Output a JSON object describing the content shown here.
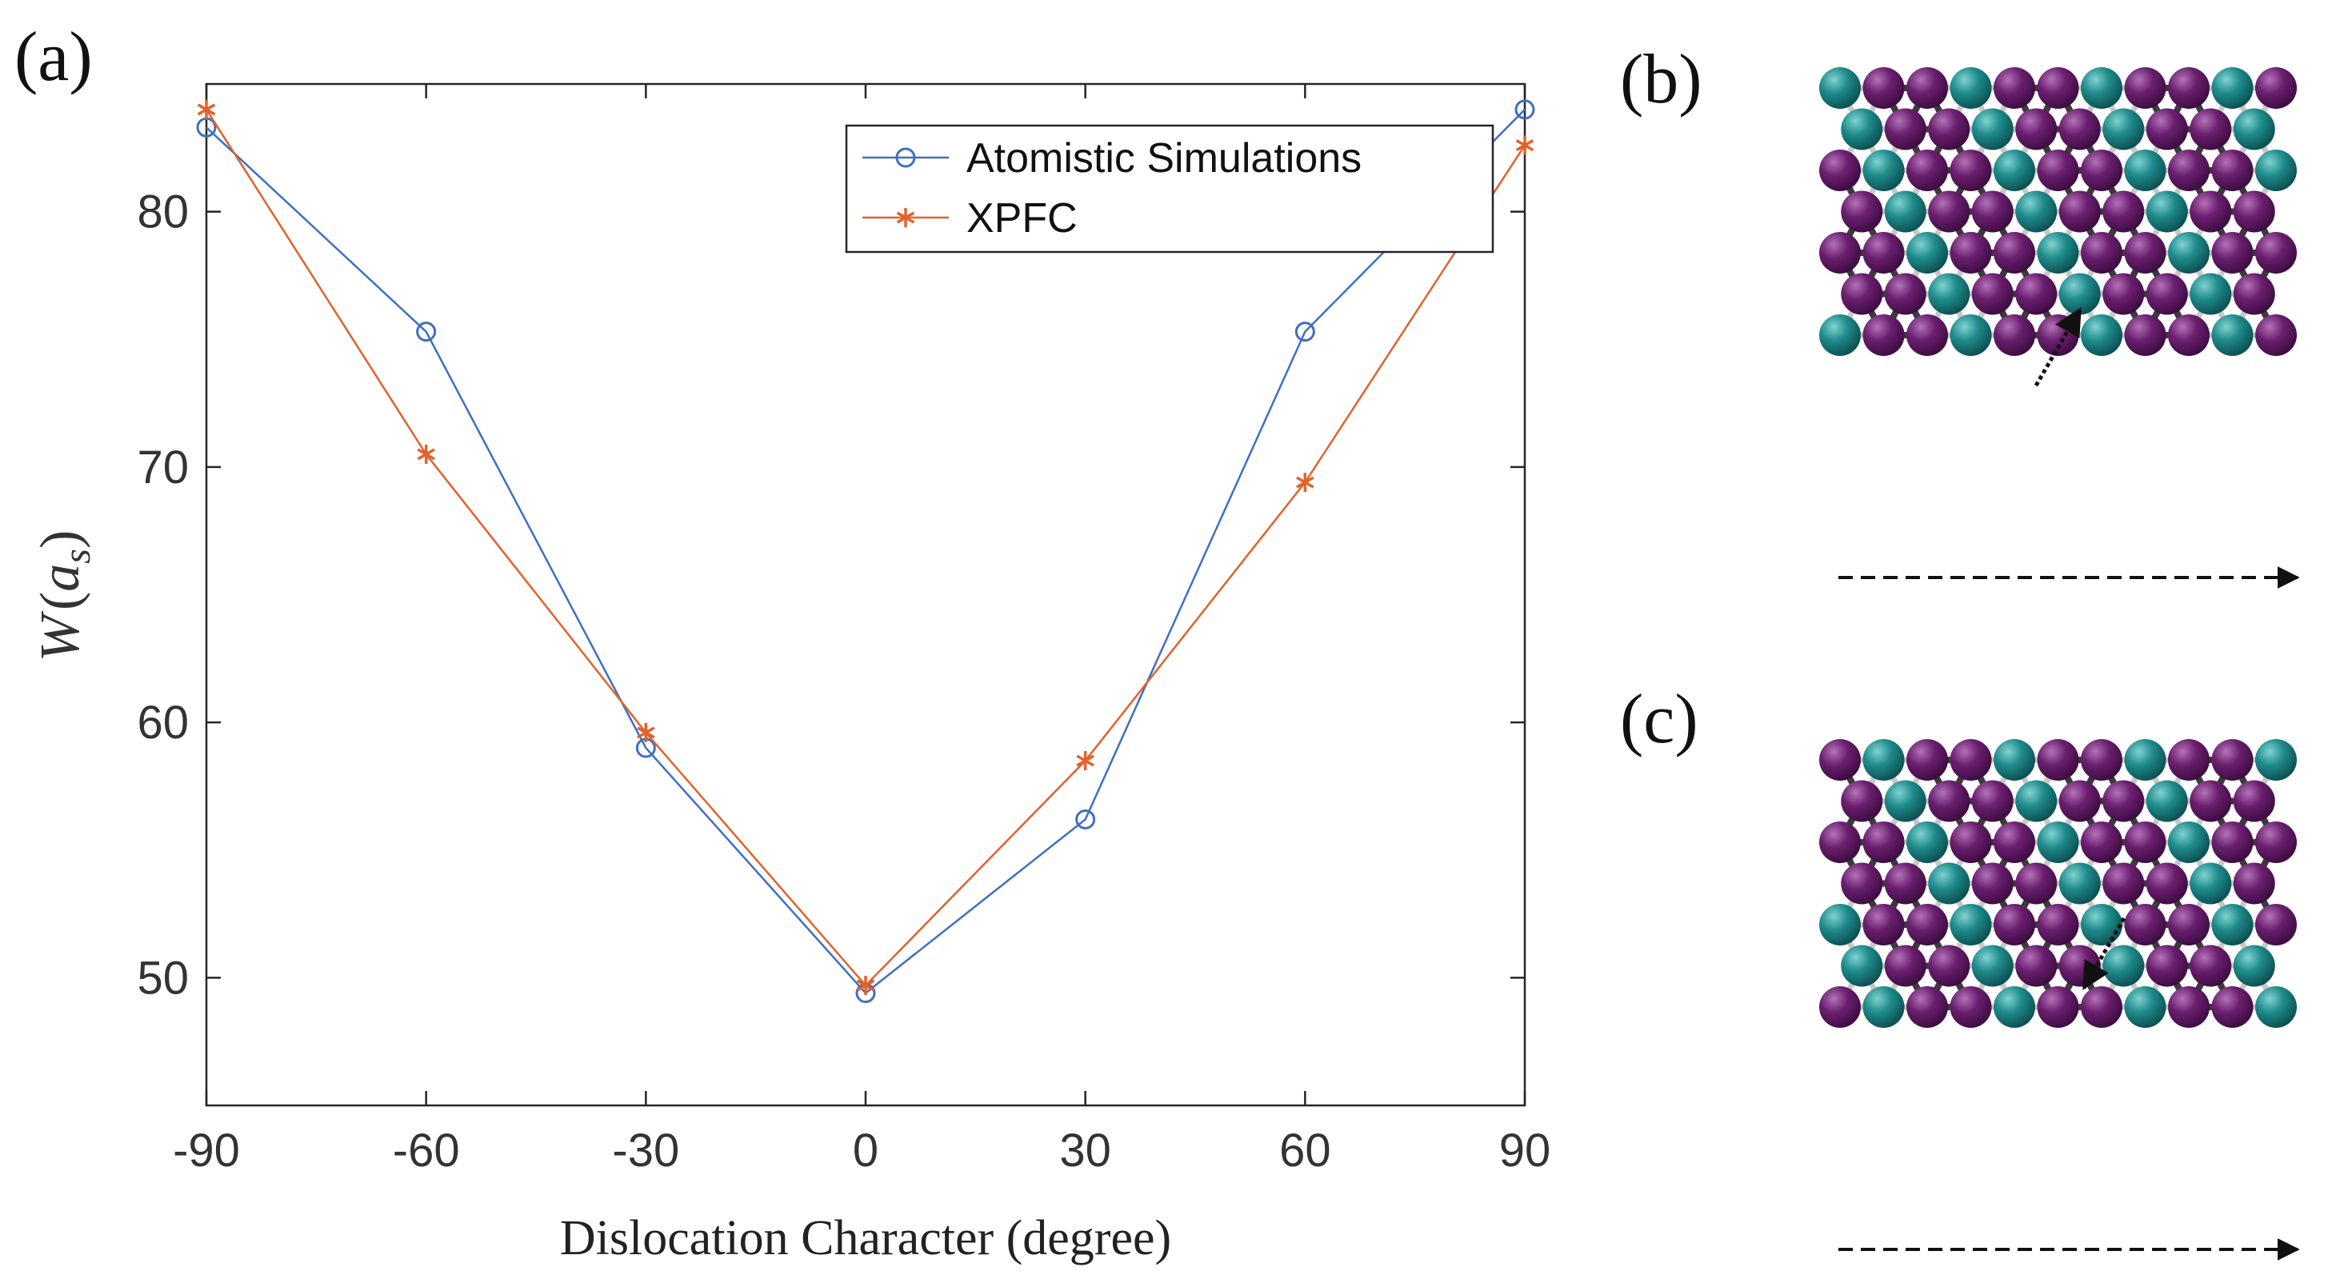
{
  "panels": {
    "a": "(a)",
    "b": "(b)",
    "c": "(c)"
  },
  "chart_data": {
    "type": "line",
    "title": "",
    "xlabel": "Dislocation Character (degree)",
    "ylabel_main": "W",
    "ylabel_sub": "s",
    "ylabel_open": "(",
    "ylabel_var": "a",
    "ylabel_close": ")",
    "x": [
      -90,
      -60,
      -30,
      0,
      30,
      60,
      90
    ],
    "xticks": [
      "-90",
      "-60",
      "-30",
      "0",
      "30",
      "60",
      "90"
    ],
    "yticks": [
      "50",
      "60",
      "70",
      "80"
    ],
    "ytick_values": [
      50,
      60,
      70,
      80
    ],
    "xlim": [
      -90,
      90
    ],
    "ylim": [
      45,
      85
    ],
    "legend_position": "top-right",
    "series": [
      {
        "name": "Atomistic Simulations",
        "marker": "circle",
        "color": "#3f6fc4",
        "values": [
          83.3,
          75.3,
          59.0,
          49.4,
          56.2,
          75.3,
          84.0
        ]
      },
      {
        "name": "XPFC",
        "marker": "asterisk",
        "color": "#e2622b",
        "values": [
          84.0,
          70.5,
          59.6,
          49.7,
          58.5,
          69.4,
          82.6
        ]
      }
    ]
  },
  "colors": {
    "teal_atom": "#1f8b8b",
    "purple_atom": "#6a1f6e",
    "dark_bond": "#3a3a3a",
    "light_bond": "#c8c8c8"
  }
}
